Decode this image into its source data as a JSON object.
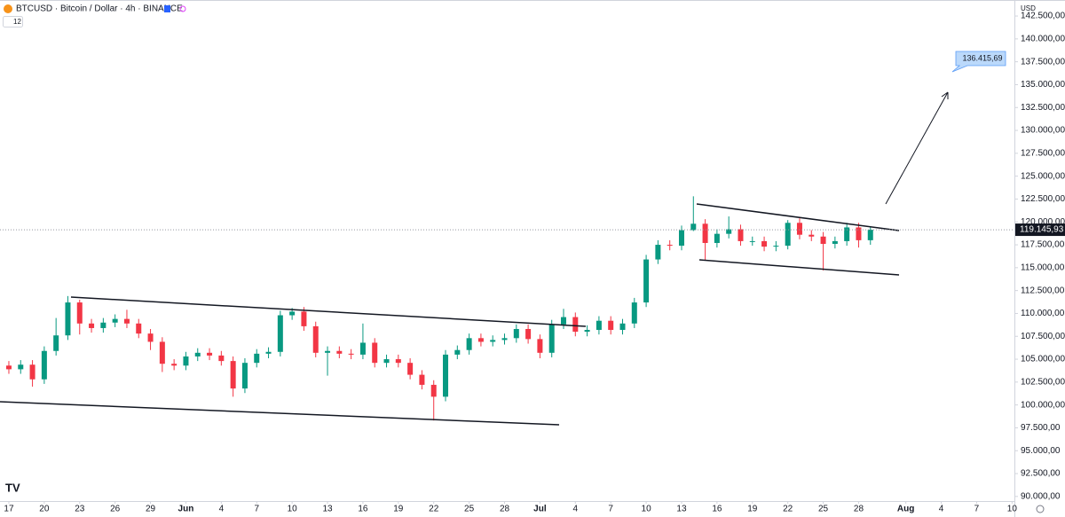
{
  "header": {
    "symbol": "BTCUSD · Bitcoin / Dollar · 4h · BINANCE",
    "indicator_count": 12
  },
  "chart_data": {
    "type": "candlestick",
    "currency": "USD",
    "up_color": "#089981",
    "down_color": "#f23645",
    "x": [
      0,
      1,
      2,
      3,
      4,
      5,
      6,
      7,
      8,
      9,
      10,
      11,
      12,
      13,
      14,
      15,
      16,
      17,
      18,
      19,
      20,
      21,
      22,
      23,
      24,
      25,
      26,
      27,
      28,
      29,
      30,
      31,
      32,
      33,
      34,
      35,
      36,
      37,
      38,
      39,
      40,
      41,
      42,
      43,
      44,
      45,
      46,
      47,
      48,
      49,
      50,
      51,
      52,
      53,
      54,
      55,
      56,
      57,
      58,
      59,
      60,
      61,
      62,
      63,
      64,
      65,
      66,
      67,
      68,
      69,
      70,
      71,
      72,
      73
    ],
    "open": [
      104300,
      103900,
      104400,
      102800,
      105900,
      107600,
      111200,
      108900,
      108400,
      109000,
      109400,
      108900,
      107800,
      106900,
      104500,
      104300,
      105300,
      105700,
      105400,
      104800,
      101800,
      104600,
      105600,
      105800,
      109800,
      110200,
      108600,
      105700,
      105900,
      105600,
      105500,
      106800,
      104600,
      105000,
      104600,
      103300,
      102200,
      100900,
      105500,
      106000,
      107300,
      106900,
      107100,
      107300,
      108300,
      107200,
      105700,
      108800,
      109600,
      108000,
      108200,
      109200,
      108200,
      108900,
      111200,
      115900,
      117500,
      117400,
      119100,
      119800,
      117700,
      118700,
      119200,
      117900,
      117900,
      117300,
      117400,
      119900,
      118600,
      118400,
      117600,
      117900,
      119400,
      118000
    ],
    "high": [
      104800,
      104900,
      104900,
      106400,
      109500,
      111900,
      111500,
      109400,
      109500,
      109900,
      110400,
      109400,
      108300,
      107400,
      105000,
      105800,
      106200,
      106200,
      105900,
      105300,
      105100,
      106100,
      106300,
      110300,
      110600,
      110700,
      109100,
      106400,
      106400,
      106100,
      108900,
      107300,
      105500,
      105500,
      105100,
      103800,
      102700,
      106000,
      106500,
      107800,
      107800,
      107600,
      107800,
      108800,
      108800,
      107700,
      109300,
      110500,
      110100,
      108700,
      109700,
      109700,
      109400,
      111700,
      116400,
      118000,
      118000,
      119600,
      122800,
      120300,
      119200,
      120600,
      119700,
      118400,
      118400,
      117900,
      120200,
      120400,
      119100,
      118900,
      118400,
      119900,
      119900,
      119500
    ],
    "low": [
      103400,
      103400,
      102000,
      102300,
      105400,
      107100,
      107700,
      107900,
      107900,
      108500,
      108400,
      107300,
      106000,
      103600,
      103800,
      103800,
      104800,
      104900,
      104300,
      100900,
      101300,
      104100,
      105100,
      105300,
      109300,
      108100,
      105200,
      103200,
      105100,
      105000,
      105000,
      104100,
      104100,
      104100,
      102800,
      101700,
      98300,
      100400,
      105000,
      105500,
      106400,
      106400,
      106600,
      106800,
      106700,
      105100,
      105200,
      108300,
      107500,
      107500,
      107700,
      107700,
      107700,
      108400,
      110700,
      115400,
      116900,
      116900,
      119000,
      115800,
      117200,
      118200,
      117400,
      117400,
      116800,
      116800,
      117000,
      118100,
      117900,
      114700,
      117100,
      117400,
      117200,
      117500
    ],
    "close": [
      103900,
      104400,
      102800,
      105900,
      107600,
      111200,
      108900,
      108400,
      109000,
      109400,
      108900,
      107800,
      106900,
      104500,
      104300,
      105300,
      105700,
      105400,
      104800,
      101800,
      104600,
      105600,
      105800,
      109800,
      110200,
      108600,
      105700,
      105900,
      105600,
      105500,
      106800,
      104600,
      105000,
      104600,
      103300,
      102200,
      100900,
      105500,
      106000,
      107300,
      106900,
      107100,
      107300,
      108300,
      107200,
      105700,
      108800,
      109600,
      108000,
      108200,
      109200,
      108200,
      108900,
      111200,
      115900,
      117500,
      117400,
      119100,
      119800,
      117700,
      118700,
      119200,
      117900,
      117900,
      117300,
      117400,
      119900,
      118600,
      118400,
      117600,
      117900,
      119400,
      118000,
      119145.93
    ],
    "last_price_label": "119.145,93",
    "target_label": "136.415,69",
    "xlim": [
      -0.75,
      85.2
    ],
    "ylim": [
      89500,
      144250
    ],
    "xticks": [
      {
        "value": 0,
        "label": "17"
      },
      {
        "value": 3,
        "label": "20"
      },
      {
        "value": 6,
        "label": "23"
      },
      {
        "value": 9,
        "label": "26"
      },
      {
        "value": 12,
        "label": "29"
      },
      {
        "value": 15,
        "label": "Jun"
      },
      {
        "value": 18,
        "label": "4"
      },
      {
        "value": 21,
        "label": "7"
      },
      {
        "value": 24,
        "label": "10"
      },
      {
        "value": 27,
        "label": "13"
      },
      {
        "value": 30,
        "label": "16"
      },
      {
        "value": 33,
        "label": "19"
      },
      {
        "value": 36,
        "label": "22"
      },
      {
        "value": 39,
        "label": "25"
      },
      {
        "value": 42,
        "label": "28"
      },
      {
        "value": 45,
        "label": "Jul"
      },
      {
        "value": 48,
        "label": "4"
      },
      {
        "value": 51,
        "label": "7"
      },
      {
        "value": 54,
        "label": "10"
      },
      {
        "value": 57,
        "label": "13"
      },
      {
        "value": 60,
        "label": "16"
      },
      {
        "value": 63,
        "label": "19"
      },
      {
        "value": 66,
        "label": "22"
      },
      {
        "value": 69,
        "label": "25"
      },
      {
        "value": 72,
        "label": "28"
      },
      {
        "value": 76,
        "label": "Aug"
      },
      {
        "value": 79,
        "label": "4"
      },
      {
        "value": 82,
        "label": "7"
      },
      {
        "value": 85,
        "label": "10"
      }
    ],
    "yticks": [
      {
        "value": 90000,
        "label": "90.000,00"
      },
      {
        "value": 92500,
        "label": "92.500,00"
      },
      {
        "value": 95000,
        "label": "95.000,00"
      },
      {
        "value": 97500,
        "label": "97.500,00"
      },
      {
        "value": 100000,
        "label": "100.000,00"
      },
      {
        "value": 102500,
        "label": "102.500,00"
      },
      {
        "value": 105000,
        "label": "105.000,00"
      },
      {
        "value": 107500,
        "label": "107.500,00"
      },
      {
        "value": 110000,
        "label": "110.000,00"
      },
      {
        "value": 112500,
        "label": "112.500,00"
      },
      {
        "value": 115000,
        "label": "115.000,00"
      },
      {
        "value": 117500,
        "label": "117.500,00"
      },
      {
        "value": 120000,
        "label": "120.000,00"
      },
      {
        "value": 122500,
        "label": "122.500,00"
      },
      {
        "value": 125000,
        "label": "125.000,00"
      },
      {
        "value": 127500,
        "label": "127.500,00"
      },
      {
        "value": 130000,
        "label": "130.000,00"
      },
      {
        "value": 132500,
        "label": "132.500,00"
      },
      {
        "value": 135000,
        "label": "135.000,00"
      },
      {
        "value": 137500,
        "label": "137.500,00"
      },
      {
        "value": 140000,
        "label": "140.000,00"
      },
      {
        "value": 142500,
        "label": "142.500,00"
      }
    ]
  }
}
